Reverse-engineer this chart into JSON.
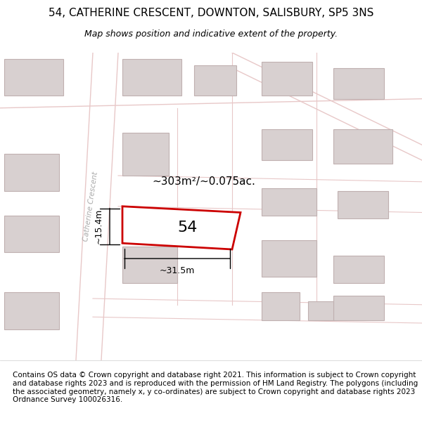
{
  "title": "54, CATHERINE CRESCENT, DOWNTON, SALISBURY, SP5 3NS",
  "subtitle": "Map shows position and indicative extent of the property.",
  "footer": "Contains OS data © Crown copyright and database right 2021. This information is subject to Crown copyright and database rights 2023 and is reproduced with the permission of HM Land Registry. The polygons (including the associated geometry, namely x, y co-ordinates) are subject to Crown copyright and database rights 2023 Ordnance Survey 100026316.",
  "background_color": "#f5f0f0",
  "map_bg": "#f5f0f0",
  "road_color": "#e8c8c8",
  "building_fill": "#d8d0d0",
  "building_edge": "#c0b0b0",
  "highlight_color": "#cc0000",
  "street_label": "Catherine Crescent",
  "area_label": "~303m²/~0.075ac.",
  "plot_label": "54",
  "dim_width": "~31.5m",
  "dim_height": "~15.4m",
  "title_fontsize": 11,
  "subtitle_fontsize": 9,
  "footer_fontsize": 7.5
}
